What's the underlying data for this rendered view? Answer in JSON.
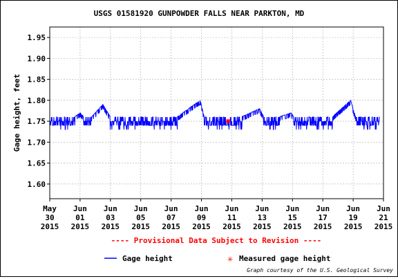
{
  "chart_data": {
    "type": "line",
    "title": "USGS 01581920 GUNPOWDER FALLS NEAR PARKTON, MD",
    "ylabel": "Gage height, feet",
    "xlabel": "",
    "grid": true,
    "legend_position": "bottom",
    "ylim": [
      1.565,
      1.975
    ],
    "xlim": [
      "2015-05-30",
      "2015-06-21"
    ],
    "yticks": [
      {
        "value": 1.95,
        "label": "1.95"
      },
      {
        "value": 1.9,
        "label": "1.90"
      },
      {
        "value": 1.85,
        "label": "1.85"
      },
      {
        "value": 1.8,
        "label": "1.80"
      },
      {
        "value": 1.75,
        "label": "1.75"
      },
      {
        "value": 1.7,
        "label": "1.70"
      },
      {
        "value": 1.65,
        "label": "1.65"
      },
      {
        "value": 1.6,
        "label": "1.60"
      }
    ],
    "xticks": [
      {
        "date": "2015-05-30",
        "l1": "May",
        "l2": "30",
        "l3": "2015"
      },
      {
        "date": "2015-06-01",
        "l1": "Jun",
        "l2": "01",
        "l3": "2015"
      },
      {
        "date": "2015-06-03",
        "l1": "Jun",
        "l2": "03",
        "l3": "2015"
      },
      {
        "date": "2015-06-05",
        "l1": "Jun",
        "l2": "05",
        "l3": "2015"
      },
      {
        "date": "2015-06-07",
        "l1": "Jun",
        "l2": "07",
        "l3": "2015"
      },
      {
        "date": "2015-06-09",
        "l1": "Jun",
        "l2": "09",
        "l3": "2015"
      },
      {
        "date": "2015-06-11",
        "l1": "Jun",
        "l2": "11",
        "l3": "2015"
      },
      {
        "date": "2015-06-13",
        "l1": "Jun",
        "l2": "13",
        "l3": "2015"
      },
      {
        "date": "2015-06-15",
        "l1": "Jun",
        "l2": "15",
        "l3": "2015"
      },
      {
        "date": "2015-06-17",
        "l1": "Jun",
        "l2": "17",
        "l3": "2015"
      },
      {
        "date": "2015-06-19",
        "l1": "Jun",
        "l2": "19",
        "l3": "2015"
      },
      {
        "date": "2015-06-21",
        "l1": "Jun",
        "l2": "21",
        "l3": "2015"
      }
    ],
    "series": [
      {
        "name": "Gage height",
        "color": "#0000ff",
        "base_range": [
          1.73,
          1.76
        ],
        "points": [
          {
            "x": "2015-05-30T00:00",
            "y": 1.75
          },
          {
            "x": "2015-05-31T06:00",
            "y": 1.75
          },
          {
            "x": "2015-06-01T00:00",
            "y": 1.77
          },
          {
            "x": "2015-06-01T12:00",
            "y": 1.75
          },
          {
            "x": "2015-06-02T12:00",
            "y": 1.79
          },
          {
            "x": "2015-06-03T00:00",
            "y": 1.76
          },
          {
            "x": "2015-06-05T00:00",
            "y": 1.76
          },
          {
            "x": "2015-06-07T00:00",
            "y": 1.75
          },
          {
            "x": "2015-06-08T22:00",
            "y": 1.8
          },
          {
            "x": "2015-06-09T06:00",
            "y": 1.75
          },
          {
            "x": "2015-06-11T00:00",
            "y": 1.75
          },
          {
            "x": "2015-06-12T20:00",
            "y": 1.78
          },
          {
            "x": "2015-06-13T06:00",
            "y": 1.75
          },
          {
            "x": "2015-06-14T22:00",
            "y": 1.77
          },
          {
            "x": "2015-06-15T06:00",
            "y": 1.75
          },
          {
            "x": "2015-06-17T00:00",
            "y": 1.74
          },
          {
            "x": "2015-06-18T20:00",
            "y": 1.8
          },
          {
            "x": "2015-06-19T06:00",
            "y": 1.75
          },
          {
            "x": "2015-06-20T18:00",
            "y": 1.75
          }
        ]
      }
    ],
    "measured": [
      {
        "name": "Measured gage height",
        "color": "#ff0000",
        "x": "2015-06-10T18:00",
        "y": 1.75
      }
    ],
    "annotation": "---- Provisional Data Subject to Revision ----",
    "annotation_color": "#ff0000",
    "credit": "Graph courtesy of the U.S. Geological Survey"
  }
}
